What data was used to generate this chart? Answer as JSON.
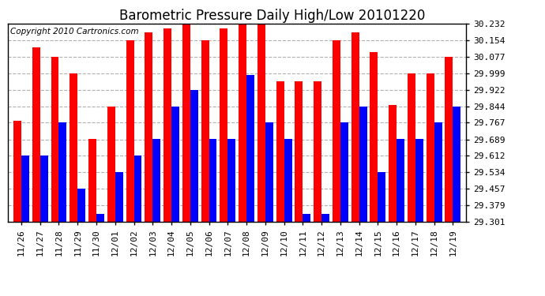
{
  "title": "Barometric Pressure Daily High/Low 20101220",
  "copyright": "Copyright 2010 Cartronics.com",
  "dates": [
    "11/26",
    "11/27",
    "11/28",
    "11/29",
    "11/30",
    "12/01",
    "12/02",
    "12/03",
    "12/04",
    "12/05",
    "12/06",
    "12/07",
    "12/08",
    "12/09",
    "12/10",
    "12/11",
    "12/12",
    "12/13",
    "12/14",
    "12/15",
    "12/16",
    "12/17",
    "12/18",
    "12/19"
  ],
  "highs": [
    29.775,
    30.12,
    30.077,
    29.999,
    29.69,
    29.844,
    30.154,
    30.19,
    30.21,
    30.232,
    30.154,
    30.21,
    30.232,
    30.232,
    29.96,
    29.96,
    29.96,
    30.154,
    30.19,
    30.1,
    29.85,
    29.999,
    29.999,
    30.077
  ],
  "lows": [
    29.612,
    29.612,
    29.767,
    29.457,
    29.34,
    29.534,
    29.612,
    29.69,
    29.844,
    29.92,
    29.69,
    29.69,
    29.99,
    29.767,
    29.69,
    29.34,
    29.34,
    29.767,
    29.844,
    29.534,
    29.69,
    29.69,
    29.767,
    29.844
  ],
  "ymin": 29.301,
  "ymax": 30.232,
  "yticks": [
    30.232,
    30.154,
    30.077,
    29.999,
    29.922,
    29.844,
    29.767,
    29.689,
    29.612,
    29.534,
    29.457,
    29.379,
    29.301
  ],
  "bar_color_high": "#FF0000",
  "bar_color_low": "#0000FF",
  "bg_color": "#FFFFFF",
  "plot_bg_color": "#FFFFFF",
  "grid_color": "#B0B0B0",
  "title_fontsize": 12,
  "copyright_fontsize": 7.5,
  "tick_fontsize": 8
}
